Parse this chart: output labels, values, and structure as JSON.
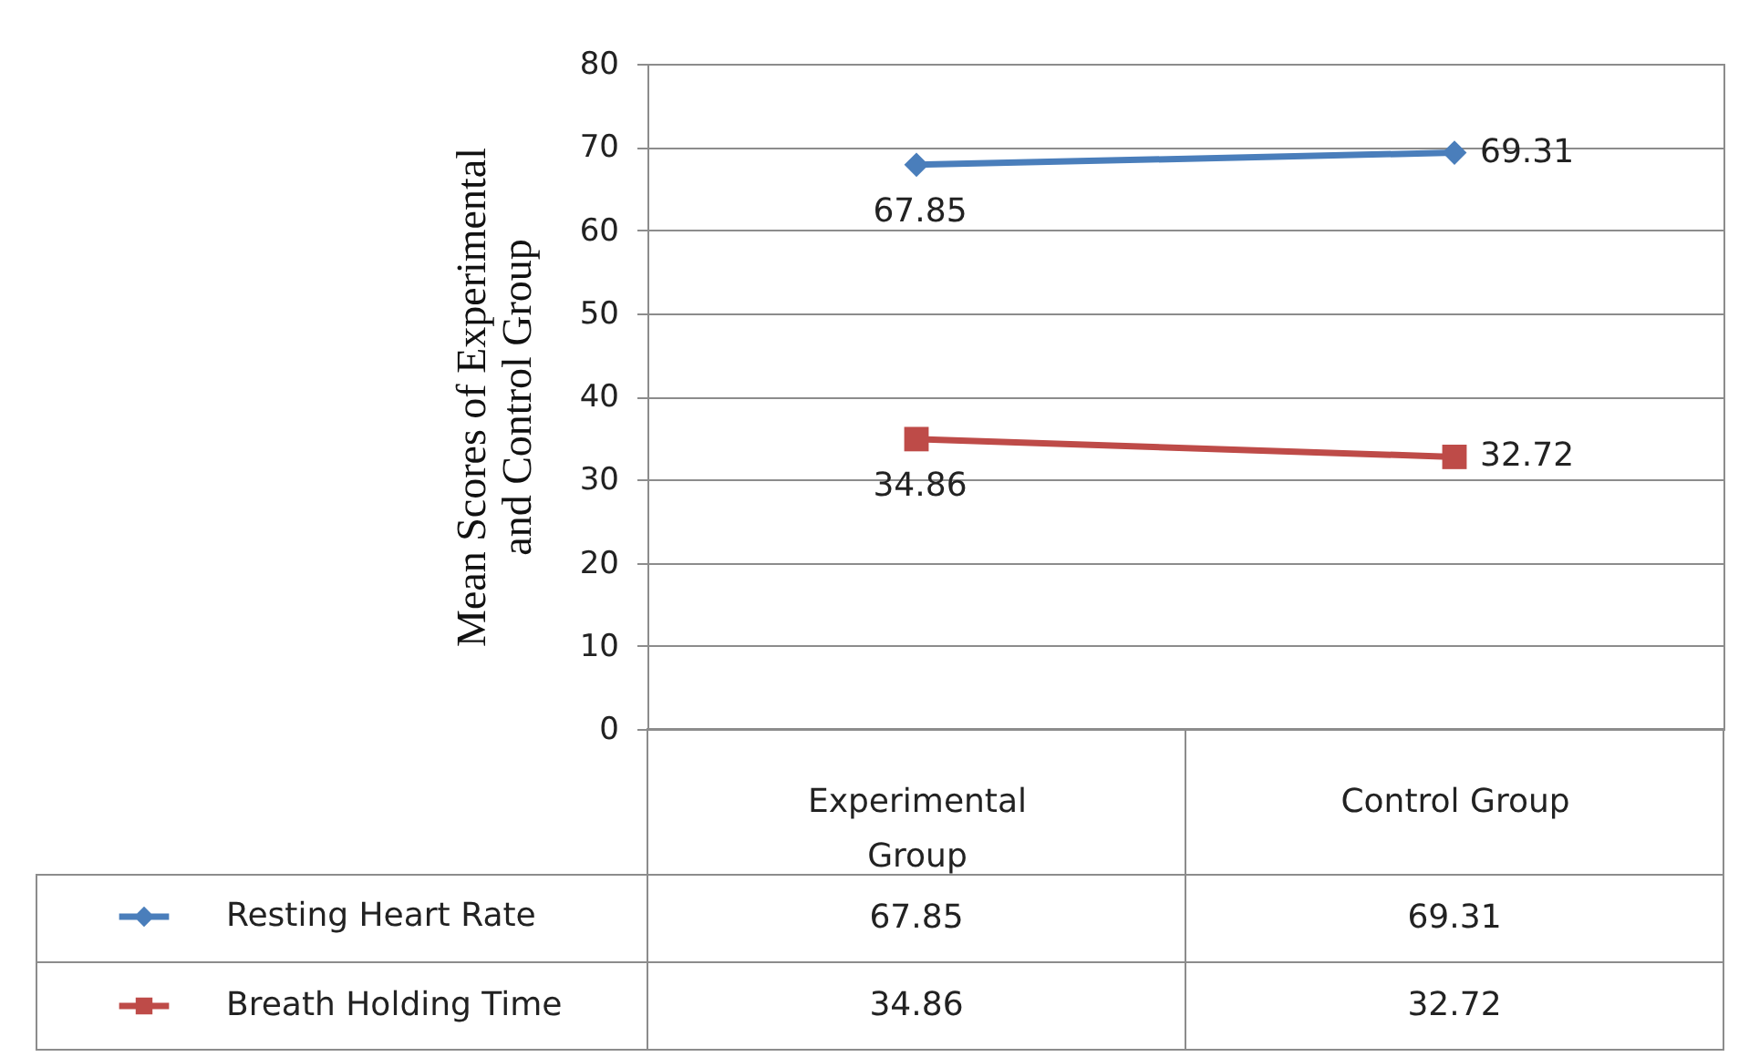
{
  "chart_data": {
    "type": "line",
    "ylabel": "Mean Scores of Experimental and Control Group",
    "categories": [
      "Experimental Group",
      "Control Group"
    ],
    "series": [
      {
        "name": "Resting Heart Rate",
        "color": "#4a7ebb",
        "values": [
          67.85,
          69.31
        ],
        "marker": "diamond"
      },
      {
        "name": "Breath Holding Time",
        "color": "#be4b48",
        "values": [
          34.86,
          32.72
        ],
        "marker": "square"
      }
    ],
    "ylim": [
      0,
      80
    ],
    "yticks": [
      0,
      10,
      20,
      30,
      40,
      50,
      60,
      70,
      80
    ],
    "grid": "y",
    "data_labels": true,
    "annotations": [
      "67.85",
      "69.31",
      "34.86",
      "32.72"
    ],
    "legend": "bottom"
  }
}
